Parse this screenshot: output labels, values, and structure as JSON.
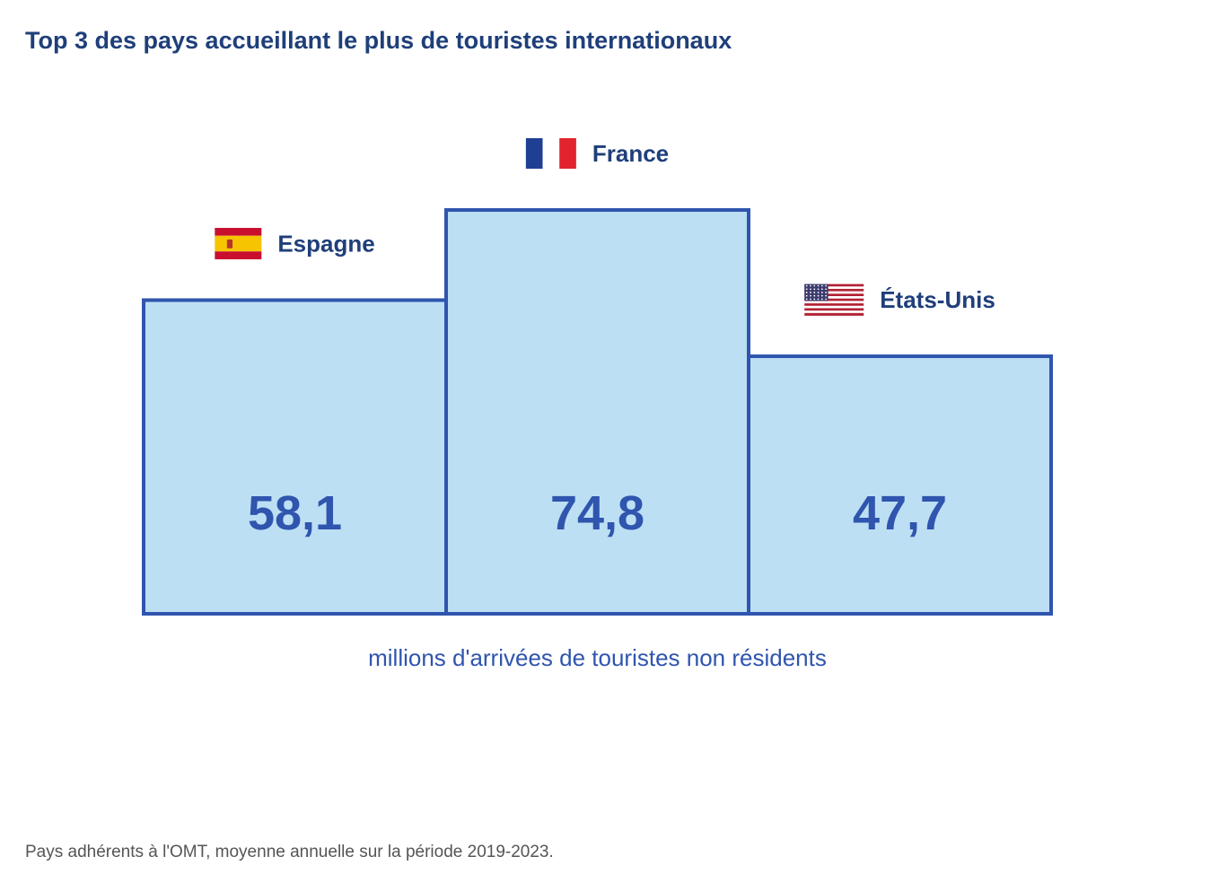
{
  "title": "Top 3 des pays accueillant le plus de touristes internationaux",
  "footnote": "Pays adhérents à l'OMT, moyenne annuelle sur la période 2019-2023.",
  "colors": {
    "title": "#1f3f7a",
    "bar_fill": "#bddff4",
    "bar_stroke": "#2f55ae",
    "value_text": "#2f55ae",
    "country_label": "#1f3f7a",
    "axis_label": "#2f55ae",
    "footnote": "#555555"
  },
  "chart_data": {
    "type": "bar",
    "title": "Top 3 des pays accueillant le plus de touristes internationaux",
    "xlabel": "millions d'arrivées de touristes non résidents",
    "ylabel": "",
    "ylim": [
      0,
      74.8
    ],
    "grid": false,
    "legend": "none",
    "categories": [
      "Espagne",
      "France",
      "États-Unis"
    ],
    "values": [
      58.1,
      74.8,
      47.7
    ],
    "value_labels": [
      "58,1",
      "74,8",
      "47,7"
    ],
    "flags": [
      "spain-flag-icon",
      "france-flag-icon",
      "usa-flag-icon"
    ]
  }
}
